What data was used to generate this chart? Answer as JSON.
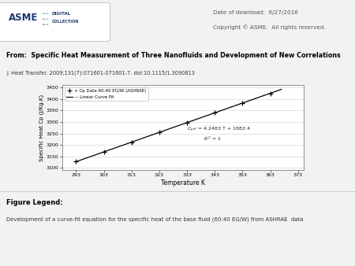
{
  "title_from": "From:  Specific Heat Measurement of Three Nanofluids and Development of New Correlations",
  "journal_ref": "J. Heat Transfer. 2009;131(7):071601-071601-7. doi:10.1115/1.3090813",
  "date_text": "Date of download:  6/27/2016",
  "copyright_text": "Copyright © ASME.  All rights reserved.",
  "xlabel": "Temperature K",
  "ylabel": "Specific Heat Cp (J/Kg.K)",
  "legend_data_label": "+ Cp Data 60:40 EG/W (ASHRAE)",
  "legend_fit_label": "— Linear Curve Fit",
  "slope": 4.2483,
  "intercept": 1882.4,
  "T_start": 293,
  "T_end": 367,
  "x_ticks": [
    293,
    303,
    313,
    323,
    333,
    343,
    353,
    363,
    373
  ],
  "y_ticks": [
    3100,
    3150,
    3200,
    3250,
    3300,
    3350,
    3400,
    3450
  ],
  "y_min": 3090,
  "y_max": 3460,
  "x_min": 288,
  "x_max": 375,
  "bg_color": "#f2f2f2",
  "header_bg": "#ffffff",
  "plot_bg": "#ffffff",
  "line_color": "#000000",
  "marker_color": "#000000",
  "figure_legend_title": "Figure Legend:",
  "figure_legend_text": "Development of a curve-fit equation for the specific heat of the base fluid (60:40 EG/W) from ASHRAE  data"
}
